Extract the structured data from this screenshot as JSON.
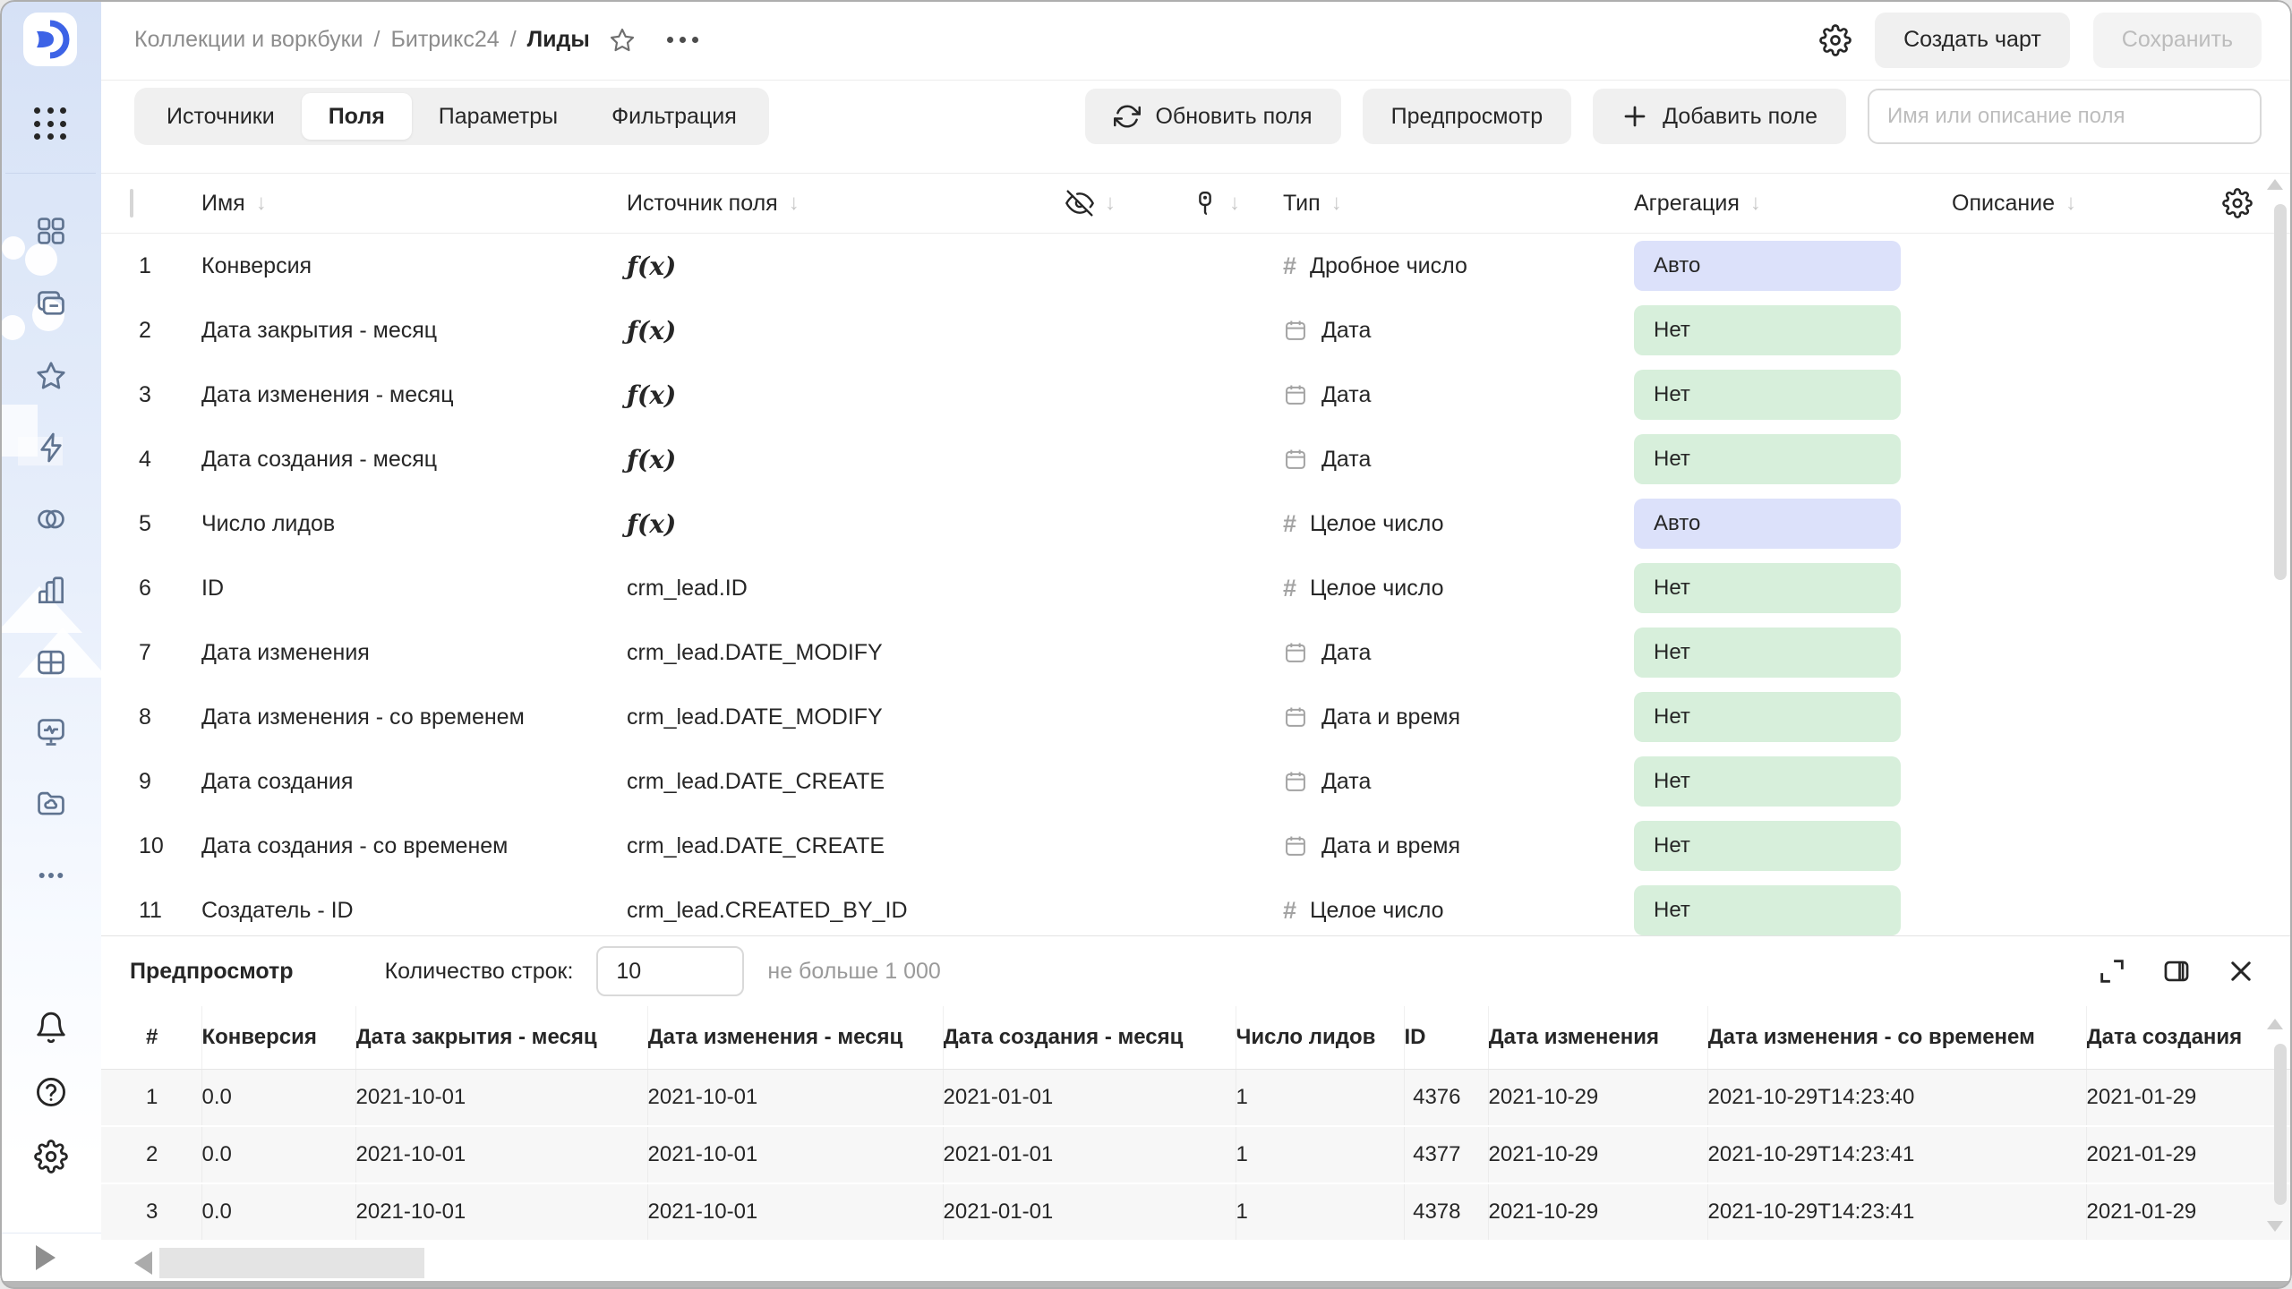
{
  "topbar": {
    "breadcrumb": [
      "Коллекции и воркбуки",
      "Битрикс24",
      "Лиды"
    ],
    "breadcrumb_separator": "/",
    "create_chart_label": "Создать чарт",
    "save_label": "Сохранить"
  },
  "toolbar": {
    "tabs": [
      {
        "id": "sources",
        "label": "Источники",
        "active": false
      },
      {
        "id": "fields",
        "label": "Поля",
        "active": true
      },
      {
        "id": "parameters",
        "label": "Параметры",
        "active": false
      },
      {
        "id": "filtering",
        "label": "Фильтрация",
        "active": false
      }
    ],
    "refresh_label": "Обновить поля",
    "preview_label": "Предпросмотр",
    "add_field_label": "Добавить поле",
    "search_placeholder": "Имя или описание поля"
  },
  "fields_table": {
    "columns": {
      "name": "Имя",
      "source": "Источник поля",
      "type": "Тип",
      "aggregation": "Агрегация",
      "description": "Описание"
    },
    "rows": [
      {
        "num": "1",
        "name": "Конверсия",
        "formula": true,
        "source": "",
        "type_icon": "number",
        "type": "Дробное число",
        "aggregation": "Авто",
        "agg_variant": "auto"
      },
      {
        "num": "2",
        "name": "Дата закрытия - месяц",
        "formula": true,
        "source": "",
        "type_icon": "calendar",
        "type": "Дата",
        "aggregation": "Нет",
        "agg_variant": "none"
      },
      {
        "num": "3",
        "name": "Дата изменения - месяц",
        "formula": true,
        "source": "",
        "type_icon": "calendar",
        "type": "Дата",
        "aggregation": "Нет",
        "agg_variant": "none"
      },
      {
        "num": "4",
        "name": "Дата создания - месяц",
        "formula": true,
        "source": "",
        "type_icon": "calendar",
        "type": "Дата",
        "aggregation": "Нет",
        "agg_variant": "none"
      },
      {
        "num": "5",
        "name": "Число лидов",
        "formula": true,
        "source": "",
        "type_icon": "number",
        "type": "Целое число",
        "aggregation": "Авто",
        "agg_variant": "auto"
      },
      {
        "num": "6",
        "name": "ID",
        "formula": false,
        "source": "crm_lead.ID",
        "type_icon": "number",
        "type": "Целое число",
        "aggregation": "Нет",
        "agg_variant": "none"
      },
      {
        "num": "7",
        "name": "Дата изменения",
        "formula": false,
        "source": "crm_lead.DATE_MODIFY",
        "type_icon": "calendar",
        "type": "Дата",
        "aggregation": "Нет",
        "agg_variant": "none"
      },
      {
        "num": "8",
        "name": "Дата изменения - со временем",
        "formula": false,
        "source": "crm_lead.DATE_MODIFY",
        "type_icon": "calendar",
        "type": "Дата и время",
        "aggregation": "Нет",
        "agg_variant": "none"
      },
      {
        "num": "9",
        "name": "Дата создания",
        "formula": false,
        "source": "crm_lead.DATE_CREATE",
        "type_icon": "calendar",
        "type": "Дата",
        "aggregation": "Нет",
        "agg_variant": "none"
      },
      {
        "num": "10",
        "name": "Дата создания - со временем",
        "formula": false,
        "source": "crm_lead.DATE_CREATE",
        "type_icon": "calendar",
        "type": "Дата и время",
        "aggregation": "Нет",
        "agg_variant": "none"
      },
      {
        "num": "11",
        "name": "Создатель - ID",
        "formula": false,
        "source": "crm_lead.CREATED_BY_ID",
        "type_icon": "number",
        "type": "Целое число",
        "aggregation": "Нет",
        "agg_variant": "none"
      }
    ]
  },
  "preview": {
    "title": "Предпросмотр",
    "rows_count_label": "Количество строк:",
    "rows_count_value": "10",
    "limit_hint": "не больше 1 000",
    "columns": [
      "#",
      "Конверсия",
      "Дата закрытия - месяц",
      "Дата изменения - месяц",
      "Дата создания - месяц",
      "Число лидов",
      "ID",
      "Дата изменения",
      "Дата изменения - со временем",
      "Дата создания"
    ],
    "rows": [
      [
        "1",
        "0.0",
        "2021-10-01",
        "2021-10-01",
        "2021-01-01",
        "1",
        "4376",
        "2021-10-29",
        "2021-10-29T14:23:40",
        "2021-01-29"
      ],
      [
        "2",
        "0.0",
        "2021-10-01",
        "2021-10-01",
        "2021-01-01",
        "1",
        "4377",
        "2021-10-29",
        "2021-10-29T14:23:41",
        "2021-01-29"
      ],
      [
        "3",
        "0.0",
        "2021-10-01",
        "2021-10-01",
        "2021-01-01",
        "1",
        "4378",
        "2021-10-29",
        "2021-10-29T14:23:41",
        "2021-01-29"
      ]
    ]
  },
  "sidebar": {
    "icons": [
      "apps-grid",
      "dashboards",
      "collections",
      "favorites",
      "quick-actions",
      "connections",
      "charts",
      "datasets",
      "monitoring",
      "storage",
      "more"
    ],
    "bottom_icons": [
      "notifications",
      "help",
      "settings"
    ],
    "expand_icon": "expand-sidebar"
  },
  "colors": {
    "badge_auto_bg": "#dce1fa",
    "badge_none_bg": "#d7efdb",
    "brand_blue": "#3d63e6",
    "sidebar_icon": "#5f7390"
  }
}
